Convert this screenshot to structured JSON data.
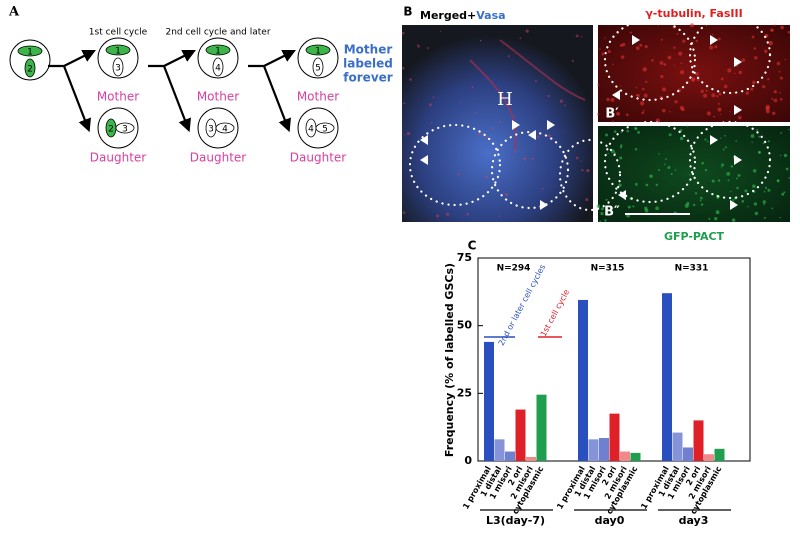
{
  "panel_a": {
    "label": "A",
    "col_titles": [
      "1st cell cycle",
      "2nd cell cycle and later"
    ],
    "mother": "Mother",
    "daughter": "Daughter",
    "forever": [
      "Mother",
      "labeled",
      "forever"
    ],
    "start_cell": [
      "1",
      "2"
    ],
    "cells": [
      {
        "mother": [
          "1",
          "3"
        ],
        "daughter": [
          "2",
          "3"
        ]
      },
      {
        "mother": [
          "1",
          "4"
        ],
        "daughter": [
          "3",
          "4"
        ]
      },
      {
        "mother": [
          "1",
          "5"
        ],
        "daughter": [
          "4",
          "5"
        ]
      }
    ]
  },
  "panel_b": {
    "label": "B",
    "merged": "Merged+",
    "vasa": "Vasa",
    "h": "H",
    "stain_top": "γ-tubulin, FasIII",
    "b1": "B′",
    "b2": "B″",
    "stain_bottom": "GFP-PACT"
  },
  "chart_data": {
    "type": "bar",
    "panel_label": "C",
    "y_label": "Frequency (% of labelled GSCs)",
    "categories": [
      "L3(day-7)",
      "day0",
      "day3"
    ],
    "n_labels": [
      "N=294",
      "N=315",
      "N=331"
    ],
    "annotations": [
      "2nd or later cell cycles",
      "1st cell cycle"
    ],
    "series": [
      {
        "name": "1 proximal",
        "color": "#2a4fbf",
        "values": [
          44,
          59.5,
          62
        ]
      },
      {
        "name": "1 distal",
        "color": "#8593d9",
        "values": [
          8,
          8,
          10.5
        ]
      },
      {
        "name": "1 misori",
        "color": "#6f80d0",
        "values": [
          3.5,
          8.5,
          5
        ]
      },
      {
        "name": "2 ori",
        "color": "#e02028",
        "values": [
          19,
          17.5,
          15
        ]
      },
      {
        "name": "2 misori",
        "color": "#f08a8a",
        "values": [
          1.5,
          3.5,
          2.5
        ]
      },
      {
        "name": "cytoplasmic",
        "color": "#1e9e4e",
        "values": [
          24.5,
          3,
          4.5
        ]
      }
    ],
    "ylim": [
      0,
      75
    ],
    "yticks": [
      0,
      25,
      50,
      75
    ]
  }
}
